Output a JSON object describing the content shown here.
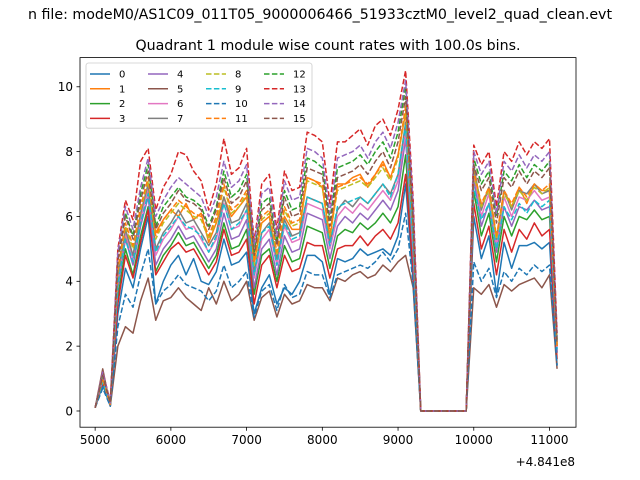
{
  "chart_data": {
    "type": "line",
    "suptitle": "n file: modeM0/AS1C09_011T05_9000006466_51933cztM0_level2_quad_clean.evt",
    "title": "Quadrant 1 module wise count rates with 100.0s bins.",
    "xlabel": "",
    "ylabel": "",
    "x_offset_label": "+4.841e8",
    "xlim": [
      4800,
      11350
    ],
    "ylim": [
      -0.5,
      10.9
    ],
    "x_ticks": [
      5000,
      6000,
      7000,
      8000,
      9000,
      10000,
      11000
    ],
    "x_tick_labels": [
      "5000",
      "6000",
      "7000",
      "8000",
      "9000",
      "10000",
      "11000"
    ],
    "y_ticks": [
      0,
      2,
      4,
      6,
      8,
      10
    ],
    "y_tick_labels": [
      "0",
      "2",
      "4",
      "6",
      "8",
      "10"
    ],
    "grid": false,
    "legend_position": "top-left",
    "legend_columns": 4,
    "x": [
      5000,
      5100,
      5200,
      5300,
      5400,
      5500,
      5600,
      5700,
      5800,
      5900,
      6000,
      6100,
      6200,
      6300,
      6400,
      6500,
      6600,
      6700,
      6800,
      6900,
      7000,
      7100,
      7200,
      7300,
      7400,
      7500,
      7600,
      7700,
      7800,
      7900,
      8000,
      8100,
      8200,
      8300,
      8400,
      8500,
      8600,
      8700,
      8800,
      8900,
      9000,
      9100,
      9200,
      9300,
      9400,
      9500,
      9600,
      9700,
      9800,
      9900,
      10000,
      10100,
      10200,
      10300,
      10400,
      10500,
      10600,
      10700,
      10800,
      10900,
      11000,
      11100
    ],
    "series": [
      {
        "name": "0",
        "color": "#1f77b4",
        "dashed": false,
        "values": [
          0.1,
          0.8,
          0.15,
          3.0,
          4.4,
          3.8,
          5.0,
          6.0,
          3.3,
          4.0,
          4.5,
          4.8,
          4.2,
          4.7,
          4.0,
          3.9,
          4.3,
          5.3,
          4.5,
          4.6,
          4.9,
          3.0,
          3.8,
          4.2,
          3.3,
          3.8,
          3.6,
          4.0,
          4.8,
          4.8,
          4.6,
          3.6,
          4.7,
          4.6,
          4.7,
          5.0,
          4.8,
          4.9,
          5.0,
          4.8,
          5.4,
          7.0,
          4.0,
          0.0,
          0.0,
          0.0,
          0.0,
          0.0,
          0.0,
          0.0,
          6.0,
          4.7,
          5.4,
          3.6,
          5.2,
          4.4,
          5.1,
          5.1,
          5.2,
          5.0,
          5.2,
          1.4
        ]
      },
      {
        "name": "1",
        "color": "#ff7f0e",
        "dashed": false,
        "values": [
          0.1,
          1.0,
          0.2,
          4.0,
          5.4,
          4.8,
          6.0,
          6.8,
          5.5,
          5.9,
          6.2,
          6.0,
          6.4,
          5.9,
          6.1,
          5.2,
          5.8,
          6.6,
          6.0,
          6.3,
          6.6,
          4.6,
          5.8,
          6.0,
          4.5,
          6.0,
          5.6,
          5.6,
          7.2,
          7.1,
          6.9,
          5.3,
          7.0,
          7.0,
          7.2,
          7.3,
          6.9,
          7.3,
          7.7,
          7.2,
          7.9,
          9.2,
          5.4,
          0.0,
          0.0,
          0.0,
          0.0,
          0.0,
          0.0,
          0.0,
          7.5,
          6.3,
          6.9,
          5.3,
          6.8,
          6.3,
          6.9,
          6.4,
          7.0,
          6.8,
          6.8,
          2.0
        ]
      },
      {
        "name": "2",
        "color": "#2ca02c",
        "dashed": false,
        "values": [
          0.1,
          0.9,
          0.2,
          3.5,
          5.0,
          4.2,
          5.4,
          6.3,
          4.3,
          4.8,
          5.1,
          5.5,
          5.1,
          5.2,
          4.8,
          4.4,
          4.8,
          5.8,
          5.0,
          5.1,
          5.6,
          3.6,
          4.8,
          5.0,
          4.0,
          5.1,
          4.6,
          4.7,
          5.7,
          5.6,
          5.5,
          4.4,
          5.4,
          5.6,
          5.5,
          5.8,
          5.6,
          5.8,
          6.1,
          5.8,
          6.3,
          7.9,
          4.5,
          0.0,
          0.0,
          0.0,
          0.0,
          0.0,
          0.0,
          0.0,
          6.8,
          5.4,
          6.1,
          4.6,
          6.0,
          5.4,
          6.0,
          5.9,
          6.2,
          5.9,
          6.0,
          1.8
        ]
      },
      {
        "name": "3",
        "color": "#d62728",
        "dashed": false,
        "values": [
          0.1,
          0.9,
          0.2,
          3.3,
          4.8,
          4.1,
          5.2,
          6.2,
          4.2,
          4.6,
          5.0,
          5.2,
          4.9,
          5.0,
          4.6,
          4.2,
          4.6,
          5.6,
          4.8,
          4.9,
          5.3,
          3.3,
          4.5,
          4.8,
          3.8,
          4.8,
          4.3,
          4.4,
          5.2,
          5.1,
          5.1,
          4.1,
          5.0,
          5.1,
          5.1,
          5.4,
          5.1,
          5.4,
          5.6,
          5.3,
          5.8,
          7.3,
          4.3,
          0.0,
          0.0,
          0.0,
          0.0,
          0.0,
          0.0,
          0.0,
          6.4,
          5.0,
          5.7,
          4.2,
          5.6,
          4.9,
          5.6,
          5.3,
          5.8,
          5.4,
          5.6,
          1.6
        ]
      },
      {
        "name": "4",
        "color": "#9467bd",
        "dashed": false,
        "values": [
          0.1,
          1.0,
          0.2,
          3.8,
          5.3,
          4.5,
          5.7,
          6.6,
          4.5,
          5.0,
          5.3,
          5.7,
          5.3,
          5.4,
          5.0,
          4.6,
          5.0,
          6.1,
          5.3,
          5.4,
          5.9,
          3.8,
          5.0,
          5.3,
          4.2,
          5.4,
          4.9,
          5.0,
          6.1,
          6.0,
          5.9,
          4.7,
          5.7,
          6.0,
          5.8,
          6.1,
          5.9,
          6.2,
          6.5,
          6.2,
          6.8,
          8.4,
          4.8,
          0.0,
          0.0,
          0.0,
          0.0,
          0.0,
          0.0,
          0.0,
          7.2,
          5.7,
          6.4,
          4.9,
          6.3,
          5.7,
          6.3,
          6.2,
          6.5,
          6.2,
          6.3,
          1.8
        ]
      },
      {
        "name": "5",
        "color": "#8c564b",
        "dashed": false,
        "values": [
          0.1,
          1.3,
          0.15,
          2.0,
          2.6,
          2.4,
          3.4,
          4.1,
          2.8,
          3.4,
          3.5,
          3.8,
          3.5,
          3.3,
          3.1,
          3.8,
          3.3,
          4.0,
          3.4,
          3.6,
          4.0,
          2.8,
          3.5,
          3.7,
          2.9,
          3.6,
          3.3,
          3.4,
          3.9,
          3.8,
          3.8,
          3.4,
          4.1,
          4.0,
          4.2,
          4.3,
          4.1,
          4.2,
          4.5,
          4.3,
          4.6,
          4.8,
          3.8,
          0.0,
          0.0,
          0.0,
          0.0,
          0.0,
          0.0,
          0.0,
          3.8,
          3.6,
          3.9,
          3.2,
          3.9,
          3.7,
          3.9,
          4.0,
          4.1,
          3.8,
          4.2,
          1.3
        ]
      },
      {
        "name": "6",
        "color": "#e377c2",
        "dashed": false,
        "values": [
          0.1,
          1.0,
          0.2,
          4.0,
          5.5,
          4.7,
          5.9,
          6.9,
          4.8,
          5.3,
          5.6,
          6.0,
          5.6,
          5.7,
          5.3,
          4.9,
          5.3,
          6.4,
          5.6,
          5.7,
          6.2,
          4.1,
          5.3,
          5.6,
          4.5,
          5.7,
          5.2,
          5.3,
          6.4,
          6.3,
          6.2,
          5.0,
          6.0,
          6.3,
          6.1,
          6.4,
          6.2,
          6.5,
          6.8,
          6.5,
          7.1,
          8.6,
          5.0,
          0.0,
          0.0,
          0.0,
          0.0,
          0.0,
          0.0,
          0.0,
          7.4,
          6.0,
          6.7,
          5.1,
          6.6,
          6.0,
          6.6,
          6.5,
          6.8,
          6.5,
          6.6,
          1.9
        ]
      },
      {
        "name": "7",
        "color": "#7f7f7f",
        "dashed": false,
        "values": [
          0.1,
          1.1,
          0.25,
          4.2,
          5.6,
          4.8,
          6.1,
          7.0,
          5.0,
          5.5,
          5.8,
          6.2,
          5.8,
          5.9,
          5.5,
          5.1,
          5.5,
          6.6,
          5.8,
          5.9,
          6.4,
          4.3,
          5.5,
          5.8,
          4.7,
          5.9,
          5.4,
          5.5,
          6.6,
          6.5,
          6.4,
          5.2,
          6.2,
          6.5,
          6.3,
          6.6,
          6.4,
          6.7,
          7.0,
          6.7,
          7.3,
          8.9,
          5.2,
          0.0,
          0.0,
          0.0,
          0.0,
          0.0,
          0.0,
          0.0,
          7.6,
          6.2,
          6.9,
          5.3,
          6.8,
          6.2,
          6.8,
          6.7,
          7.0,
          6.7,
          6.8,
          2.0
        ]
      },
      {
        "name": "8",
        "color": "#bcbd22",
        "dashed": true,
        "values": [
          0.1,
          1.0,
          0.2,
          4.3,
          5.7,
          5.0,
          6.2,
          7.1,
          5.3,
          5.8,
          6.1,
          6.4,
          6.2,
          6.0,
          5.9,
          5.3,
          5.9,
          6.9,
          6.1,
          6.3,
          6.7,
          4.5,
          5.9,
          6.1,
          4.8,
          6.2,
          5.7,
          5.8,
          7.1,
          7.0,
          6.9,
          5.4,
          6.8,
          6.9,
          7.0,
          7.1,
          6.9,
          7.2,
          7.5,
          7.1,
          7.8,
          9.3,
          5.5,
          0.0,
          0.0,
          0.0,
          0.0,
          0.0,
          0.0,
          0.0,
          7.3,
          6.3,
          6.8,
          5.3,
          6.7,
          6.3,
          6.8,
          6.5,
          6.9,
          6.7,
          6.9,
          2.0
        ]
      },
      {
        "name": "9",
        "color": "#17becf",
        "dashed": true,
        "values": [
          0.1,
          0.9,
          0.2,
          3.9,
          5.3,
          4.6,
          5.8,
          6.7,
          4.9,
          5.4,
          5.7,
          6.0,
          5.7,
          5.6,
          5.4,
          4.9,
          5.4,
          6.4,
          5.6,
          5.8,
          6.2,
          4.2,
          5.5,
          5.7,
          4.5,
          5.8,
          5.3,
          5.4,
          6.6,
          6.5,
          6.4,
          5.1,
          6.3,
          6.4,
          6.5,
          6.6,
          6.4,
          6.7,
          7.0,
          6.6,
          7.3,
          8.8,
          5.1,
          0.0,
          0.0,
          0.0,
          0.0,
          0.0,
          0.0,
          0.0,
          6.9,
          5.9,
          6.4,
          5.0,
          6.3,
          5.9,
          6.4,
          6.1,
          6.5,
          6.3,
          6.5,
          1.9
        ]
      },
      {
        "name": "10",
        "color": "#1f77b4",
        "dashed": true,
        "values": [
          0.1,
          0.7,
          0.15,
          2.6,
          3.6,
          3.2,
          4.2,
          5.0,
          3.3,
          3.7,
          3.9,
          4.2,
          3.9,
          3.8,
          3.7,
          3.4,
          3.7,
          4.5,
          3.8,
          4.0,
          4.3,
          2.9,
          3.7,
          3.9,
          3.1,
          3.9,
          3.5,
          3.6,
          4.3,
          4.2,
          4.2,
          3.5,
          4.2,
          4.3,
          4.4,
          4.5,
          4.4,
          4.6,
          4.9,
          4.6,
          5.0,
          6.1,
          3.9,
          0.0,
          0.0,
          0.0,
          0.0,
          0.0,
          0.0,
          0.0,
          4.6,
          4.0,
          4.4,
          3.5,
          4.3,
          4.0,
          4.4,
          4.2,
          4.5,
          4.3,
          4.5,
          1.4
        ]
      },
      {
        "name": "11",
        "color": "#ff7f0e",
        "dashed": true,
        "values": [
          0.1,
          1.0,
          0.2,
          4.4,
          5.8,
          5.1,
          6.3,
          7.2,
          5.4,
          5.9,
          6.2,
          6.5,
          6.3,
          6.1,
          6.0,
          5.4,
          6.0,
          7.0,
          6.2,
          6.4,
          6.8,
          4.6,
          6.0,
          6.2,
          4.9,
          6.3,
          5.8,
          5.9,
          7.2,
          7.1,
          7.0,
          5.5,
          6.9,
          7.0,
          7.1,
          7.2,
          7.0,
          7.3,
          7.6,
          7.2,
          7.9,
          9.4,
          5.6,
          0.0,
          0.0,
          0.0,
          0.0,
          0.0,
          0.0,
          0.0,
          7.4,
          6.4,
          6.9,
          5.4,
          6.8,
          6.4,
          6.9,
          6.6,
          7.0,
          6.8,
          7.0,
          2.0
        ]
      },
      {
        "name": "12",
        "color": "#2ca02c",
        "dashed": true,
        "values": [
          0.1,
          1.1,
          0.25,
          4.7,
          6.1,
          5.4,
          6.7,
          7.6,
          5.7,
          6.3,
          6.6,
          6.9,
          6.6,
          6.5,
          6.3,
          5.7,
          6.3,
          7.4,
          6.6,
          6.8,
          7.3,
          4.9,
          6.4,
          6.6,
          5.2,
          6.8,
          6.2,
          6.3,
          7.8,
          7.7,
          7.5,
          5.9,
          7.5,
          7.6,
          7.7,
          7.9,
          7.6,
          8.0,
          8.3,
          7.8,
          8.6,
          10.0,
          6.0,
          0.0,
          0.0,
          0.0,
          0.0,
          0.0,
          0.0,
          0.0,
          7.8,
          7.0,
          7.4,
          6.0,
          7.4,
          7.1,
          7.6,
          7.2,
          7.6,
          7.4,
          7.7,
          2.2
        ]
      },
      {
        "name": "13",
        "color": "#d62728",
        "dashed": true,
        "values": [
          0.1,
          1.2,
          0.3,
          5.0,
          6.5,
          5.9,
          7.7,
          8.1,
          6.2,
          6.9,
          7.3,
          8.0,
          7.9,
          7.4,
          7.1,
          6.2,
          7.0,
          8.4,
          7.3,
          7.5,
          8.1,
          5.2,
          7.0,
          7.3,
          5.6,
          7.4,
          6.8,
          6.9,
          8.6,
          8.5,
          8.3,
          6.4,
          8.3,
          8.3,
          8.5,
          8.7,
          8.2,
          8.8,
          9.0,
          8.5,
          9.3,
          10.5,
          6.5,
          0.0,
          0.0,
          0.0,
          0.0,
          0.0,
          0.0,
          0.0,
          8.2,
          7.6,
          8.0,
          6.3,
          8.0,
          7.7,
          8.3,
          7.9,
          8.3,
          8.1,
          8.4,
          2.4
        ]
      },
      {
        "name": "14",
        "color": "#9467bd",
        "dashed": true,
        "values": [
          0.1,
          1.2,
          0.25,
          4.9,
          6.3,
          5.6,
          6.9,
          7.8,
          6.0,
          6.5,
          6.9,
          7.2,
          7.0,
          6.8,
          6.6,
          6.0,
          6.6,
          7.7,
          6.9,
          7.1,
          7.6,
          5.1,
          6.7,
          6.9,
          5.4,
          7.1,
          6.5,
          6.6,
          8.1,
          8.0,
          7.8,
          6.1,
          7.8,
          7.9,
          8.0,
          8.2,
          7.8,
          8.3,
          8.6,
          8.1,
          8.9,
          10.2,
          6.3,
          0.0,
          0.0,
          0.0,
          0.0,
          0.0,
          0.0,
          0.0,
          8.0,
          7.3,
          7.7,
          6.1,
          7.7,
          7.4,
          7.9,
          7.5,
          7.9,
          7.7,
          8.0,
          2.3
        ]
      },
      {
        "name": "15",
        "color": "#8c564b",
        "dashed": true,
        "values": [
          0.1,
          1.1,
          0.25,
          4.6,
          6.0,
          5.3,
          6.5,
          7.4,
          5.6,
          6.1,
          6.4,
          6.8,
          6.5,
          6.4,
          6.2,
          5.6,
          6.2,
          7.2,
          6.4,
          6.6,
          7.1,
          4.8,
          6.2,
          6.4,
          5.1,
          6.6,
          6.0,
          6.1,
          7.5,
          7.4,
          7.3,
          5.7,
          7.2,
          7.3,
          7.4,
          7.6,
          7.3,
          7.7,
          8.0,
          7.5,
          8.3,
          9.7,
          5.8,
          0.0,
          0.0,
          0.0,
          0.0,
          0.0,
          0.0,
          0.0,
          7.6,
          6.8,
          7.2,
          5.8,
          7.2,
          6.9,
          7.4,
          7.0,
          7.4,
          7.2,
          7.5,
          2.1
        ]
      }
    ]
  }
}
